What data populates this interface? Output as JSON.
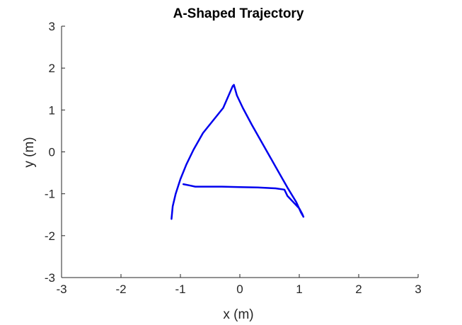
{
  "chart_data": {
    "type": "line",
    "title": "A-Shaped Trajectory",
    "xlabel": "x (m)",
    "ylabel": "y (m)",
    "xlim": [
      -3,
      3
    ],
    "ylim": [
      -3,
      3
    ],
    "xticks": [
      -3,
      -2,
      -1,
      0,
      1,
      2,
      3
    ],
    "yticks": [
      -3,
      -2,
      -1,
      0,
      1,
      2,
      3
    ],
    "grid": false,
    "series": [
      {
        "color": "#0000ee",
        "x": [
          -1.15,
          -1.13,
          -1.08,
          -1.0,
          -0.9,
          -0.78,
          -0.62,
          -0.45,
          -0.28,
          -0.12,
          -0.1,
          -0.05,
          0.05,
          0.2,
          0.4,
          0.6,
          0.8,
          0.95,
          1.03,
          1.07,
          1.05,
          1.0,
          0.9,
          0.8,
          0.75,
          0.6,
          0.3,
          0.0,
          -0.3,
          -0.6,
          -0.75,
          -0.85,
          -0.95
        ],
        "y": [
          -1.6,
          -1.3,
          -1.0,
          -0.65,
          -0.3,
          0.05,
          0.45,
          0.75,
          1.05,
          1.57,
          1.6,
          1.35,
          1.05,
          0.65,
          0.15,
          -0.35,
          -0.85,
          -1.2,
          -1.45,
          -1.55,
          -1.48,
          -1.35,
          -1.2,
          -1.05,
          -0.9,
          -0.87,
          -0.85,
          -0.84,
          -0.83,
          -0.83,
          -0.83,
          -0.8,
          -0.77
        ]
      }
    ]
  }
}
